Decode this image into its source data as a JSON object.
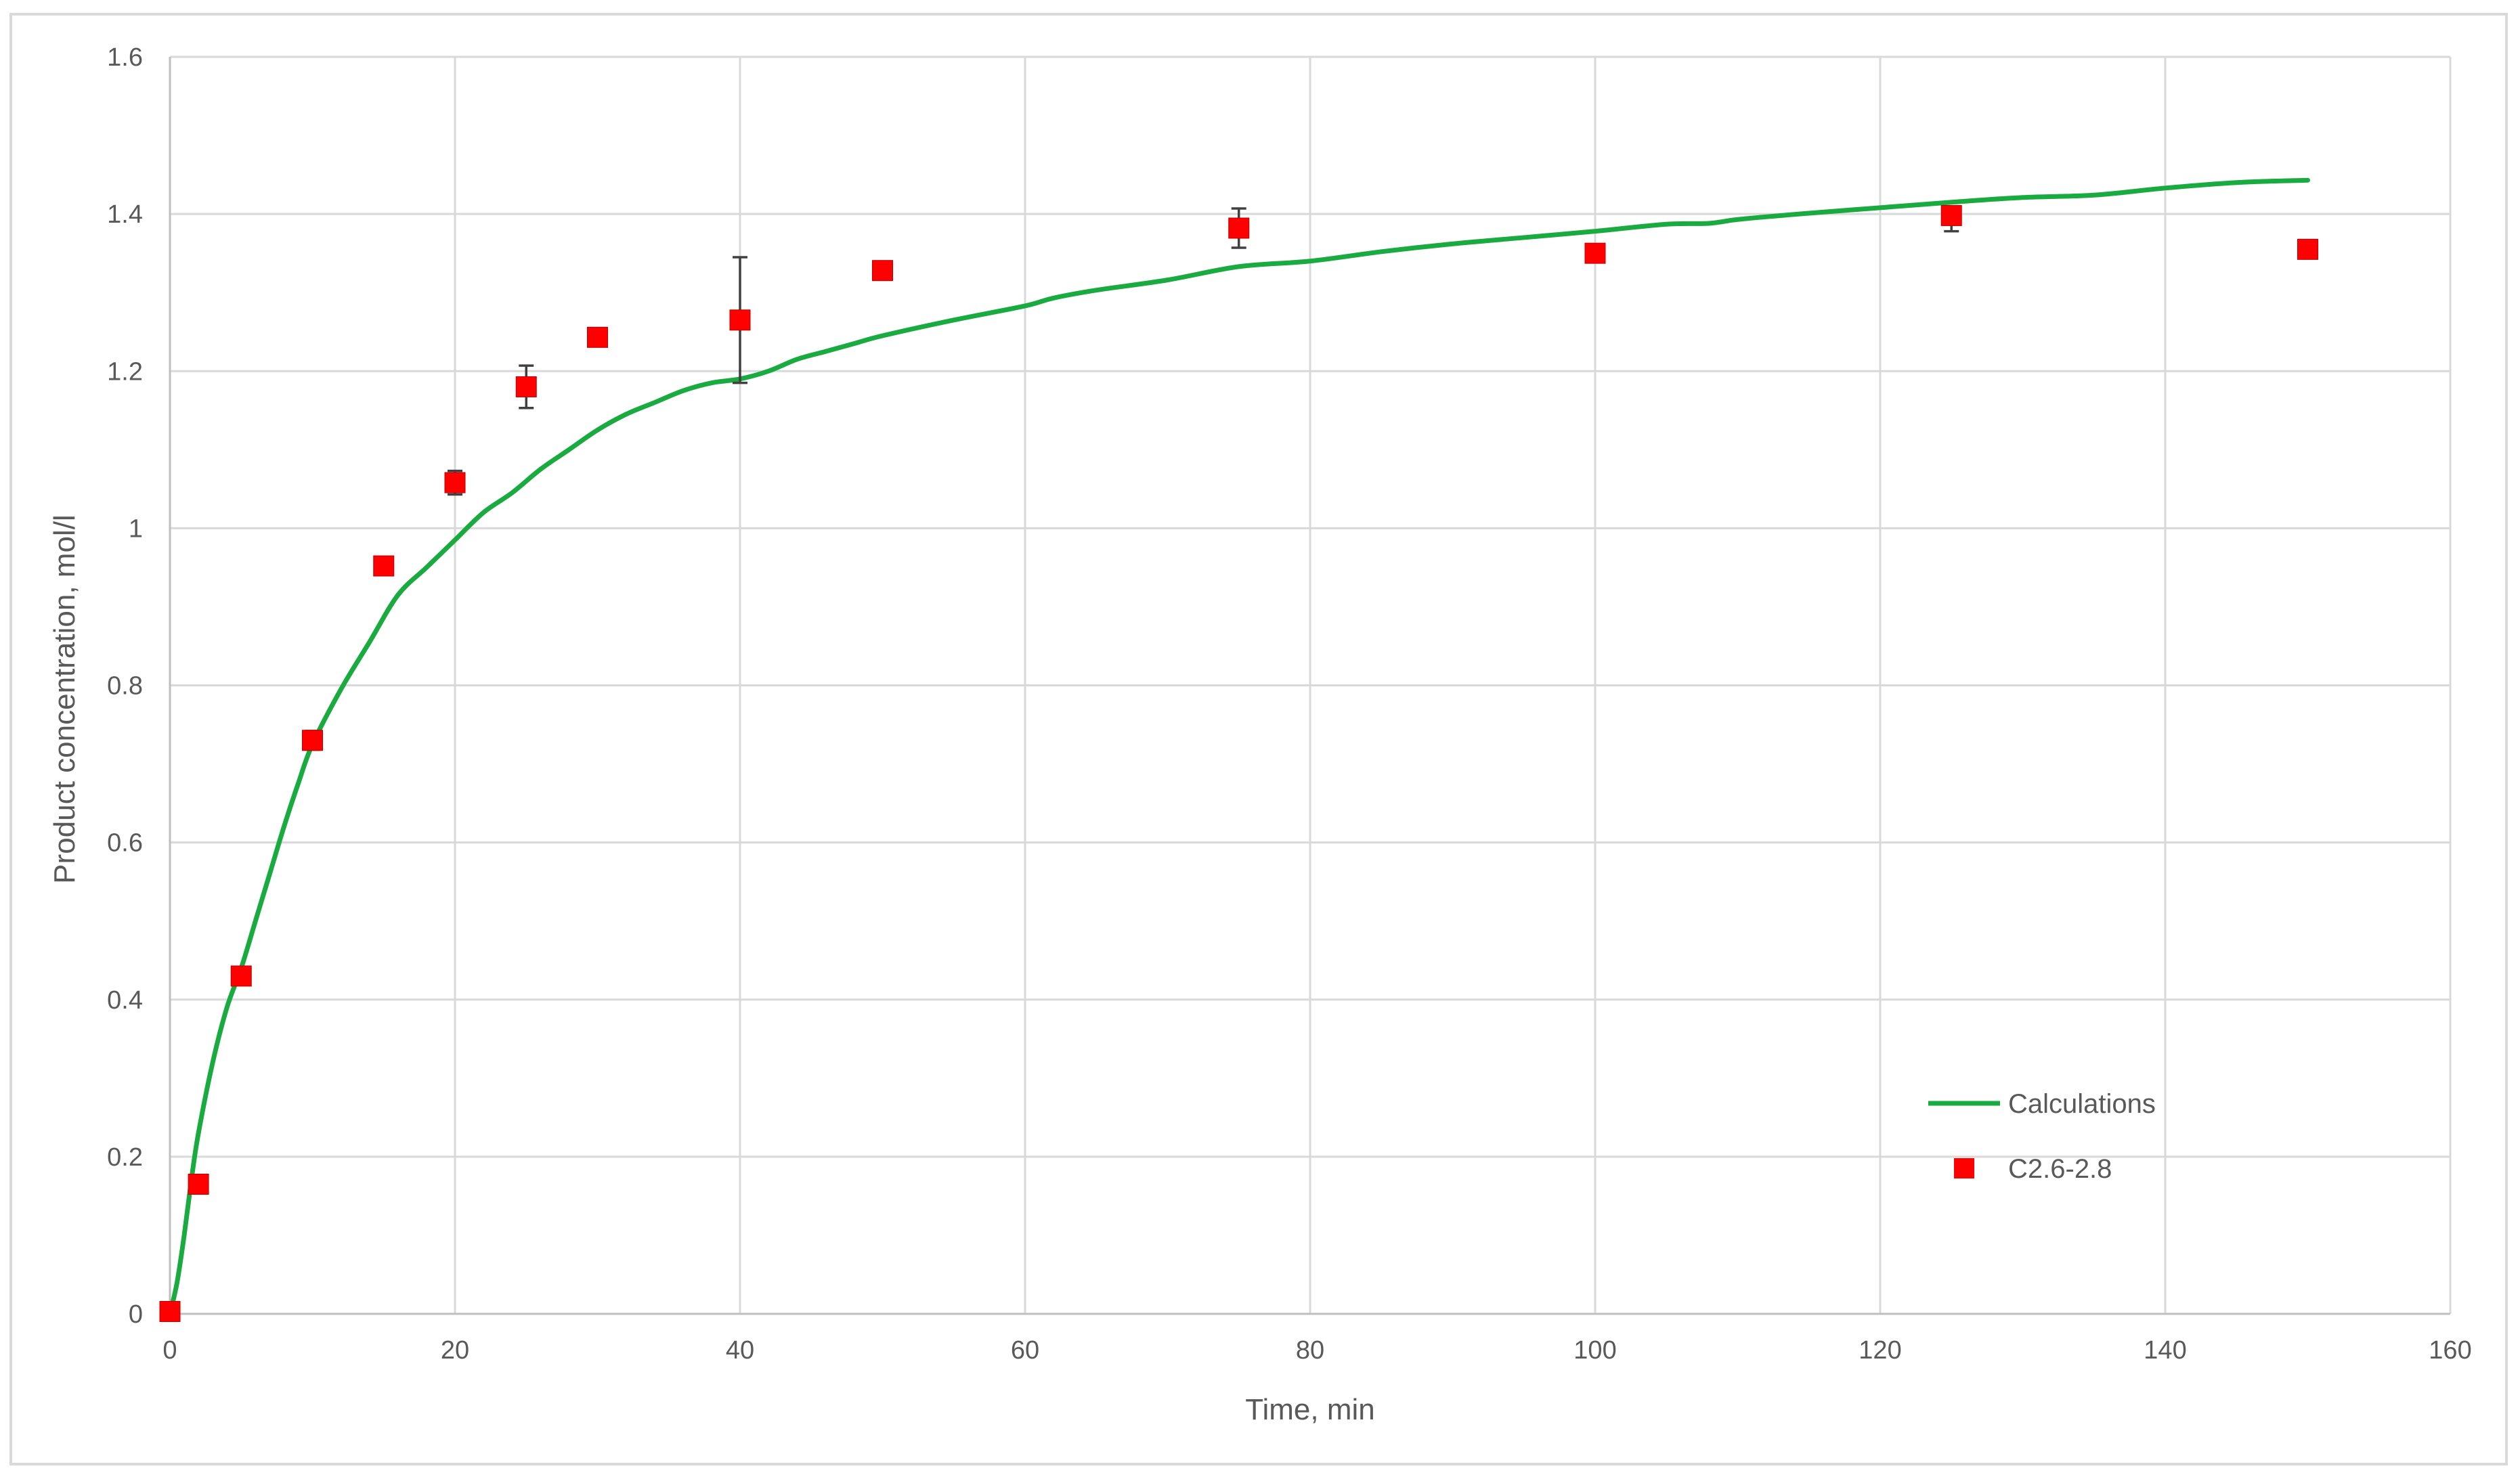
{
  "chart_data": {
    "type": "scatter",
    "title": "",
    "xlabel": "Time, min",
    "ylabel": "Product concentration, mol/l",
    "xlim": [
      0,
      160
    ],
    "ylim": [
      0,
      1.6
    ],
    "x_ticks": [
      0,
      20,
      40,
      60,
      80,
      100,
      120,
      140,
      160
    ],
    "x_tick_labels": [
      "0",
      "20",
      "40",
      "60",
      "80",
      "100",
      "120",
      "140",
      "160"
    ],
    "y_ticks": [
      0,
      0.2,
      0.4,
      0.6,
      0.8,
      1.0,
      1.2,
      1.4,
      1.6
    ],
    "y_tick_labels": [
      "0",
      "0.2",
      "0.4",
      "0.6",
      "0.8",
      "1",
      "1.2",
      "1.4",
      "1.6"
    ],
    "grid": true,
    "legend_position": "bottom-right",
    "series": [
      {
        "name": "Calculations",
        "type": "line",
        "color": "#1aab40",
        "x": [
          0,
          0.5,
          1,
          1.5,
          2,
          3,
          4,
          5,
          6,
          7,
          8,
          9,
          10,
          12,
          14,
          16,
          18,
          20,
          22,
          24,
          26,
          28,
          30,
          32,
          34,
          36,
          38,
          40,
          42,
          44,
          46,
          48,
          50,
          55,
          60,
          62,
          65,
          70,
          75,
          80,
          85,
          90,
          95,
          100,
          105,
          108,
          110,
          115,
          120,
          125,
          130,
          135,
          140,
          145,
          150
        ],
        "y": [
          0,
          0.04,
          0.1,
          0.17,
          0.23,
          0.32,
          0.39,
          0.44,
          0.5,
          0.56,
          0.62,
          0.675,
          0.725,
          0.795,
          0.855,
          0.915,
          0.95,
          0.985,
          1.02,
          1.045,
          1.075,
          1.1,
          1.125,
          1.145,
          1.16,
          1.175,
          1.185,
          1.19,
          1.2,
          1.215,
          1.225,
          1.235,
          1.245,
          1.265,
          1.283,
          1.293,
          1.303,
          1.316,
          1.333,
          1.34,
          1.352,
          1.362,
          1.37,
          1.378,
          1.387,
          1.388,
          1.393,
          1.401,
          1.408,
          1.415,
          1.421,
          1.424,
          1.433,
          1.44,
          1.443
        ]
      },
      {
        "name": "C2.6-2.8",
        "type": "scatter",
        "marker": "square",
        "color": "#ff0000",
        "x": [
          0,
          2,
          5,
          10,
          15,
          20,
          25,
          30,
          40,
          50,
          75,
          100,
          125,
          150
        ],
        "y": [
          0.003,
          0.165,
          0.43,
          0.73,
          0.952,
          1.058,
          1.18,
          1.243,
          1.265,
          1.328,
          1.382,
          1.35,
          1.398,
          1.355
        ],
        "err_low": [
          0,
          0,
          0.01,
          0.012,
          0,
          0.015,
          0.027,
          0.01,
          0.08,
          0,
          0.025,
          0,
          0.02,
          0
        ],
        "err_high": [
          0,
          0,
          0.01,
          0.012,
          0,
          0.015,
          0.027,
          0.01,
          0.08,
          0,
          0.025,
          0,
          0.01,
          0
        ]
      }
    ]
  }
}
